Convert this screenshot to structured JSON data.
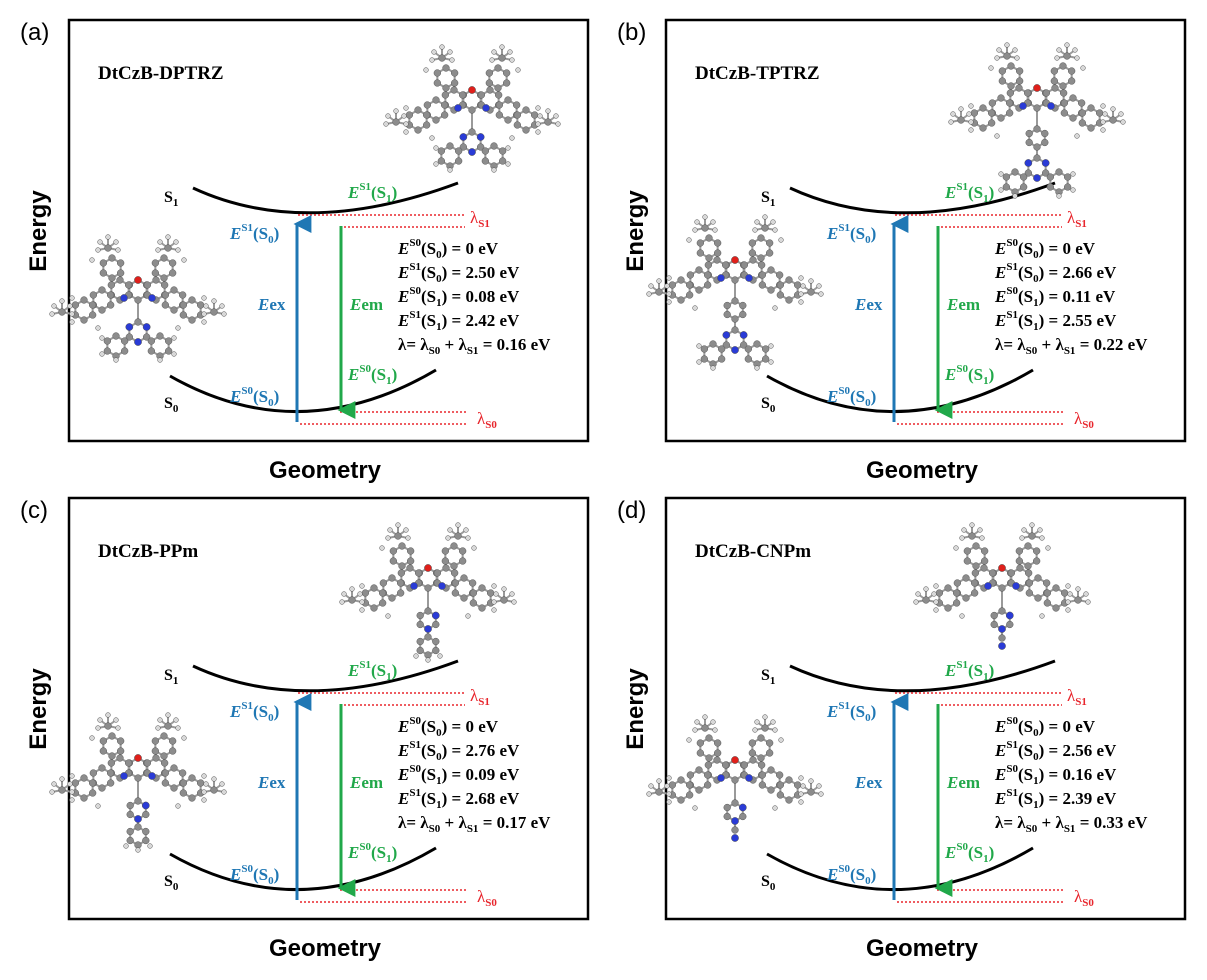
{
  "colors": {
    "blue": "#1f77b4",
    "green": "#21a84a",
    "red": "#e8262d",
    "atom_c": "#8c8c8c",
    "atom_n": "#2a3bd6",
    "atom_o": "#e0201b",
    "atom_h": "#d8d8d8"
  },
  "common": {
    "x_label": "Geometry",
    "y_label": "Energy",
    "s1": {
      "main": "S",
      "sub": "1"
    },
    "s0": {
      "main": "S",
      "sub": "0"
    },
    "eex": {
      "italic": "E",
      "rest": "ex"
    },
    "eem": {
      "italic": "E",
      "rest": "em"
    },
    "es1s0": {
      "E": "E",
      "sup": "S1",
      "mid": "(S",
      "sub": "0",
      "end": ")"
    },
    "es1s1": {
      "E": "E",
      "sup": "S1",
      "mid": "(S",
      "sub": "1",
      "end": ")"
    },
    "es0s0": {
      "E": "E",
      "sup": "S0",
      "mid": "(S",
      "sub": "0",
      "end": ")"
    },
    "es0s1": {
      "E": "E",
      "sup": "S0",
      "mid": "(S",
      "sub": "1",
      "end": ")"
    },
    "lambda_s1": {
      "sym": "λ",
      "sub": "S1"
    },
    "lambda_s0": {
      "sym": "λ",
      "sub": "S0"
    },
    "lambda_eq": {
      "lhs": "λ= λ",
      "s0": "S0",
      "plus": " + λ",
      "s1": "S1"
    }
  },
  "panels": [
    {
      "id": "a",
      "label": "(a)",
      "title": "DtCzB-DPTRZ",
      "e_s0_s0": "= 0 eV",
      "e_s1_s0": "= 2.50 eV",
      "e_s0_s1": "= 0.08 eV",
      "e_s1_s1": "= 2.42 eV",
      "lambda": "= 0.16 eV"
    },
    {
      "id": "b",
      "label": "(b)",
      "title": "DtCzB-TPTRZ",
      "e_s0_s0": "= 0 eV",
      "e_s1_s0": "= 2.66 eV",
      "e_s0_s1": "= 0.11 eV",
      "e_s1_s1": "= 2.55 eV",
      "lambda": "= 0.22 eV"
    },
    {
      "id": "c",
      "label": "(c)",
      "title": "DtCzB-PPm",
      "e_s0_s0": "= 0 eV",
      "e_s1_s0": "= 2.76 eV",
      "e_s0_s1": "= 0.09 eV",
      "e_s1_s1": "= 2.68 eV",
      "lambda": "= 0.17 eV"
    },
    {
      "id": "d",
      "label": "(d)",
      "title": "DtCzB-CNPm",
      "e_s0_s0": "= 0 eV",
      "e_s1_s0": "= 2.56 eV",
      "e_s0_s1": "= 0.16 eV",
      "e_s1_s1": "= 2.39 eV",
      "lambda": "= 0.33 eV"
    }
  ]
}
